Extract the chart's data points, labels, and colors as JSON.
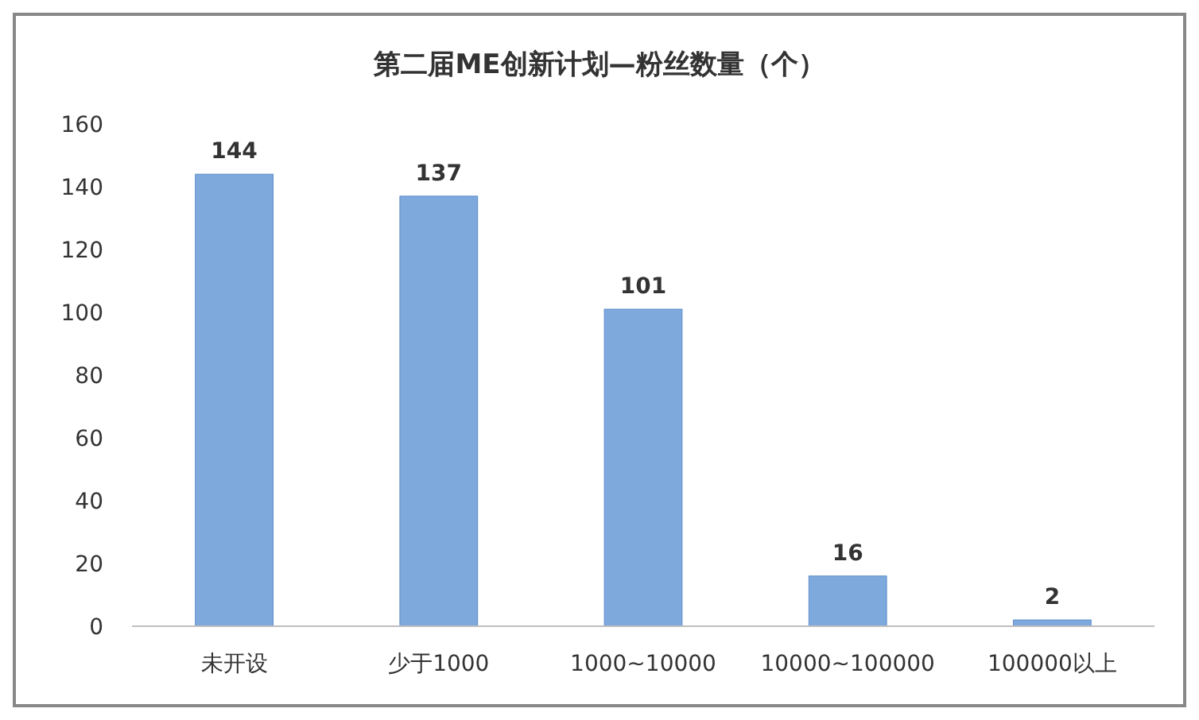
{
  "chart_data": {
    "type": "bar",
    "title": "第二届ME创新计划—粉丝数量（个）",
    "categories": [
      "未开设",
      "少于1000",
      "1000~10000",
      "10000~100000",
      "100000以上"
    ],
    "values": [
      144,
      137,
      101,
      16,
      2
    ],
    "color": "#7ea9dd",
    "ylim": [
      0,
      160
    ],
    "yticks": [
      0,
      20,
      40,
      60,
      80,
      100,
      120,
      140,
      160
    ],
    "data_labels": true,
    "grid": false
  }
}
